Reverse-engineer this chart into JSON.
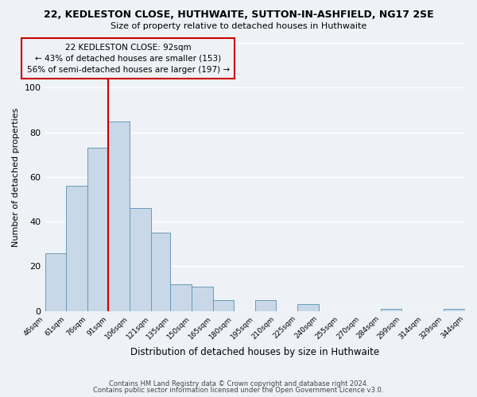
{
  "title": "22, KEDLESTON CLOSE, HUTHWAITE, SUTTON-IN-ASHFIELD, NG17 2SE",
  "subtitle": "Size of property relative to detached houses in Huthwaite",
  "xlabel": "Distribution of detached houses by size in Huthwaite",
  "ylabel": "Number of detached properties",
  "bar_edges": [
    46,
    61,
    76,
    91,
    106,
    121,
    135,
    150,
    165,
    180,
    195,
    210,
    225,
    240,
    255,
    270,
    284,
    299,
    314,
    329,
    344
  ],
  "bar_heights": [
    26,
    56,
    73,
    85,
    46,
    35,
    12,
    11,
    5,
    0,
    5,
    0,
    3,
    0,
    0,
    0,
    1,
    0,
    0,
    1,
    0
  ],
  "bar_color": "#c8d8e8",
  "bar_edgecolor": "#6a9ab8",
  "property_line_x": 91,
  "property_line_color": "#cc0000",
  "annotation_box_edgecolor": "#cc0000",
  "annotation_line1": "22 KEDLESTON CLOSE: 92sqm",
  "annotation_line2": "← 43% of detached houses are smaller (153)",
  "annotation_line3": "56% of semi-detached houses are larger (197) →",
  "ylim": [
    0,
    120
  ],
  "yticks": [
    0,
    20,
    40,
    60,
    80,
    100,
    120
  ],
  "tick_labels": [
    "46sqm",
    "61sqm",
    "76sqm",
    "91sqm",
    "106sqm",
    "121sqm",
    "135sqm",
    "150sqm",
    "165sqm",
    "180sqm",
    "195sqm",
    "210sqm",
    "225sqm",
    "240sqm",
    "255sqm",
    "270sqm",
    "284sqm",
    "299sqm",
    "314sqm",
    "329sqm",
    "344sqm"
  ],
  "footer1": "Contains HM Land Registry data © Crown copyright and database right 2024.",
  "footer2": "Contains public sector information licensed under the Open Government Licence v3.0.",
  "background_color": "#eef2f7"
}
